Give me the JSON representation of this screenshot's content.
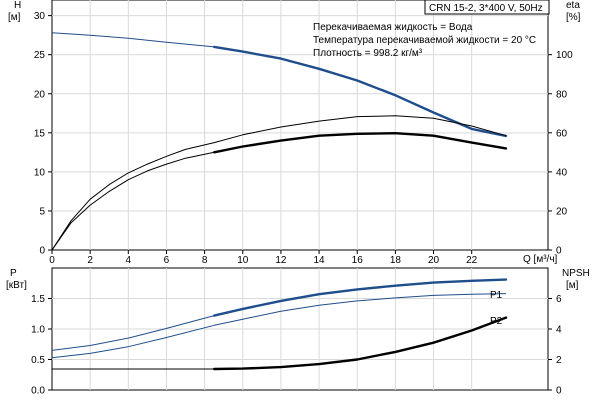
{
  "chart_data": [
    {
      "type": "line",
      "title": "",
      "legend_box": "CRN 15-2, 3*400 V, 50Hz",
      "info_lines": [
        "Перекачиваемая жидкость = Вода",
        "Температура перекачиваемой жидкости = 20 °C",
        "Плотность = 998.2 кг/м³"
      ],
      "grid": true,
      "xlabel": "Q [м³/ч]",
      "xlim": [
        0,
        26
      ],
      "xticks": [
        "0",
        "2",
        "4",
        "6",
        "8",
        "10",
        "12",
        "14",
        "16",
        "18",
        "20",
        "22"
      ],
      "xtick_values": [
        0,
        2,
        4,
        6,
        8,
        10,
        12,
        14,
        16,
        18,
        20,
        22
      ],
      "left_axis": {
        "label_line1": "H",
        "label_line2": "[м]",
        "ylim": [
          0,
          32
        ],
        "ticks": [
          "0",
          "5",
          "10",
          "15",
          "20",
          "25",
          "30"
        ],
        "tick_values": [
          0,
          5,
          10,
          15,
          20,
          25,
          30
        ]
      },
      "right_axis": {
        "label_line1": "eta",
        "label_line2": "[%]",
        "ylim": [
          0,
          128
        ],
        "ticks": [
          "0",
          "20",
          "40",
          "60",
          "80",
          "100"
        ],
        "tick_values": [
          0,
          20,
          40,
          60,
          80,
          100
        ]
      },
      "series": [
        {
          "key": "H",
          "axis": "left",
          "color": "#1f4e8c",
          "x": [
            0,
            2,
            4,
            6,
            8.5,
            10,
            12,
            14,
            16,
            18,
            20,
            22,
            23.8
          ],
          "y": [
            27.8,
            27.5,
            27.1,
            26.6,
            26.0,
            25.4,
            24.5,
            23.2,
            21.7,
            19.8,
            17.6,
            15.5,
            14.6
          ],
          "bold_from": 8.5
        },
        {
          "key": "eta_total",
          "axis": "right",
          "color": "#000000",
          "x": [
            0,
            1,
            2,
            3,
            4,
            5,
            6,
            7,
            8.5,
            10,
            12,
            14,
            16,
            18,
            20,
            22,
            23.8
          ],
          "y": [
            0,
            14,
            23,
            30,
            36,
            40.5,
            44,
            47,
            50,
            53,
            56,
            58.5,
            59.5,
            59.8,
            58.5,
            55,
            52
          ],
          "bold_from": 8.5
        },
        {
          "key": "eta_pump",
          "axis": "right",
          "color": "#000000",
          "x": [
            0,
            1,
            2,
            3,
            4,
            5,
            6,
            7,
            8.5,
            10,
            12,
            14,
            16,
            18,
            20,
            22,
            23.8
          ],
          "y": [
            0,
            15,
            26,
            33.5,
            39.5,
            44,
            48,
            51.5,
            55,
            59,
            63,
            66,
            68.3,
            68.7,
            67.5,
            63.5,
            58.5
          ],
          "bold_from": null
        }
      ]
    },
    {
      "type": "line",
      "title": "",
      "grid": true,
      "xlim": [
        0,
        26
      ],
      "left_axis": {
        "label_line1": "P",
        "label_line2": "[кВт]",
        "ylim": [
          0,
          2.0
        ],
        "ticks": [
          "0.0",
          "0.5",
          "1.0",
          "1.5"
        ],
        "tick_values": [
          0,
          0.5,
          1.0,
          1.5
        ]
      },
      "right_axis": {
        "label_line1": "NPSH",
        "label_line2": "[м]",
        "ylim": [
          0,
          8
        ],
        "ticks": [
          "0",
          "2",
          "4",
          "6"
        ],
        "tick_values": [
          0,
          2,
          4,
          6
        ]
      },
      "series": [
        {
          "key": "P1",
          "name": "P1",
          "axis": "left",
          "color": "#1f4e8c",
          "x": [
            0,
            2,
            4,
            6,
            8.5,
            10,
            12,
            14,
            16,
            18,
            20,
            22,
            23.8
          ],
          "y": [
            0.65,
            0.73,
            0.85,
            1.01,
            1.22,
            1.33,
            1.46,
            1.57,
            1.65,
            1.71,
            1.76,
            1.79,
            1.81
          ],
          "bold_from": 8.5
        },
        {
          "key": "P2",
          "name": "P2",
          "axis": "left",
          "color": "#1f4e8c",
          "x": [
            0,
            2,
            4,
            6,
            8.5,
            10,
            12,
            14,
            16,
            18,
            20,
            22,
            23.8
          ],
          "y": [
            0.53,
            0.6,
            0.71,
            0.86,
            1.06,
            1.16,
            1.29,
            1.39,
            1.46,
            1.51,
            1.55,
            1.57,
            1.58
          ],
          "bold_from": null
        },
        {
          "key": "NPSH",
          "axis": "right",
          "color": "#000000",
          "x": [
            0,
            2,
            4,
            6,
            8.5,
            10,
            12,
            14,
            16,
            18,
            20,
            22,
            23.8
          ],
          "y": [
            1.38,
            1.38,
            1.38,
            1.38,
            1.38,
            1.4,
            1.5,
            1.7,
            2.0,
            2.5,
            3.1,
            3.9,
            4.75
          ],
          "bold_from": 8.5
        }
      ]
    }
  ]
}
